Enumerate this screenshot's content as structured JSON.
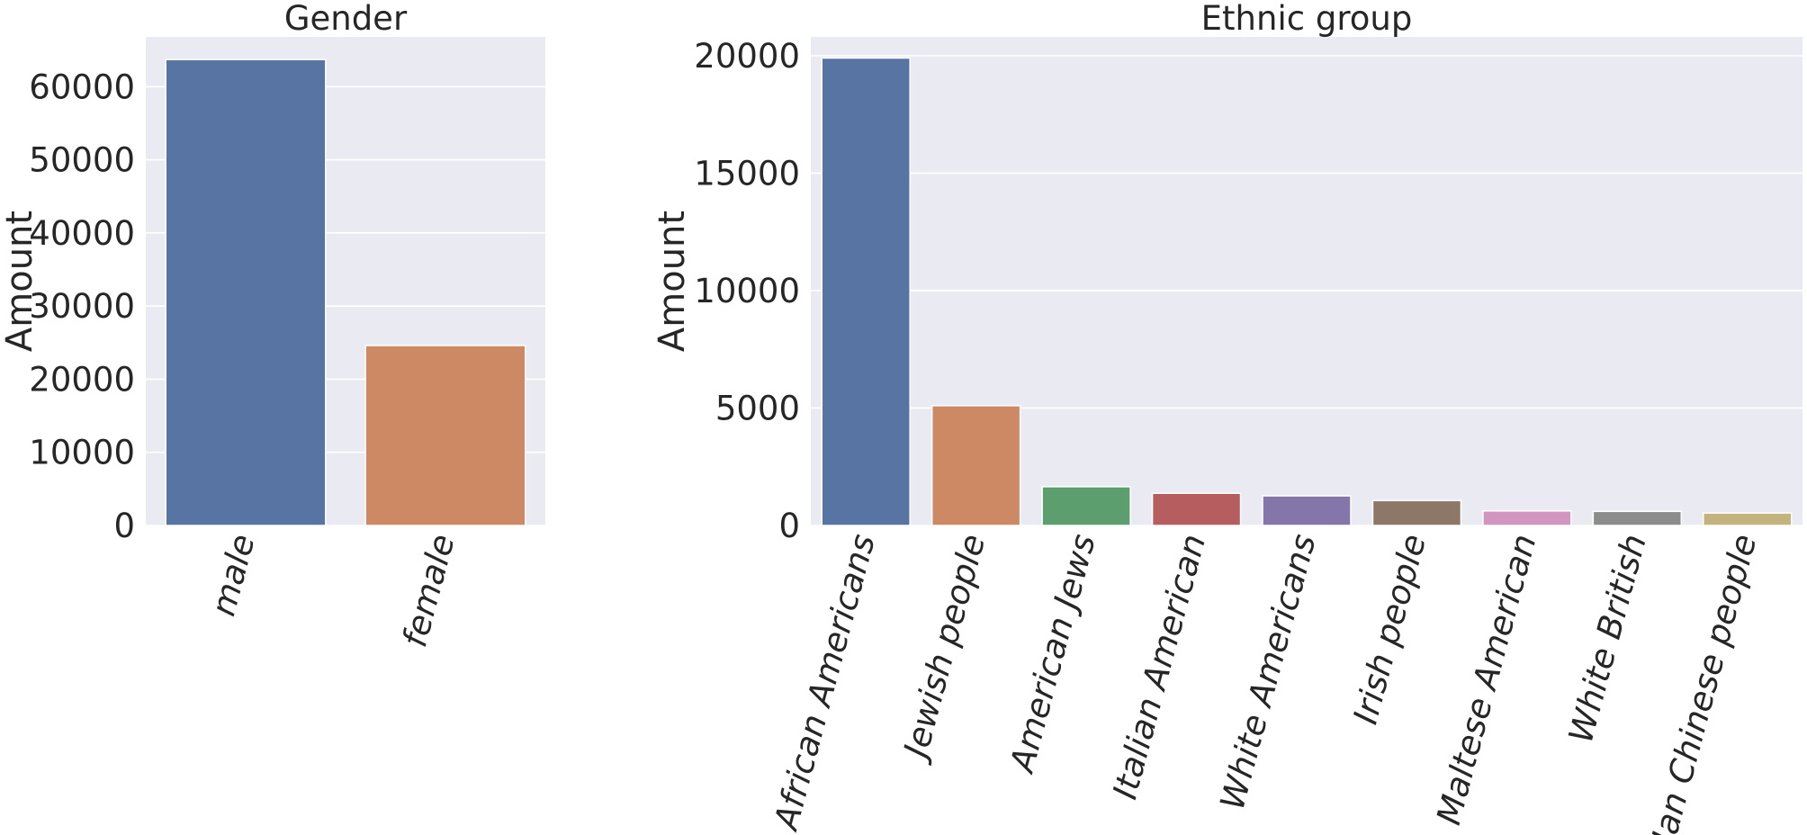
{
  "chart_data": [
    {
      "type": "bar",
      "title": "Gender",
      "xlabel": "",
      "ylabel": "Amount",
      "categories": [
        "male",
        "female"
      ],
      "values": [
        63700,
        24600
      ],
      "colors": [
        "#5874a3",
        "#cc8963"
      ],
      "ylim": [
        0,
        66800
      ],
      "yticks": [
        0,
        10000,
        20000,
        30000,
        40000,
        50000,
        60000
      ],
      "ytick_labels": [
        "0",
        "10000",
        "20000",
        "30000",
        "40000",
        "50000",
        "60000"
      ],
      "grid": true,
      "background": "#eaeaf2"
    },
    {
      "type": "bar",
      "title": "Ethnic group",
      "xlabel": "",
      "ylabel": "Amount",
      "categories": [
        "African Americans",
        "Jewish people",
        "American Jews",
        "Italian American",
        "White Americans",
        "Irish people",
        "Maltese American",
        "White British",
        "Han Chinese people"
      ],
      "values": [
        19900,
        5100,
        1650,
        1370,
        1260,
        1060,
        620,
        600,
        530
      ],
      "colors": [
        "#5874a3",
        "#cc8963",
        "#5d9e6e",
        "#b65d60",
        "#8576aa",
        "#8d7766",
        "#d195c0",
        "#8c8c8c",
        "#c4b27f"
      ],
      "ylim": [
        0,
        20800
      ],
      "yticks": [
        0,
        5000,
        10000,
        15000,
        20000
      ],
      "ytick_labels": [
        "0",
        "5000",
        "10000",
        "15000",
        "20000"
      ],
      "grid": true,
      "background": "#eaeaf2"
    }
  ]
}
